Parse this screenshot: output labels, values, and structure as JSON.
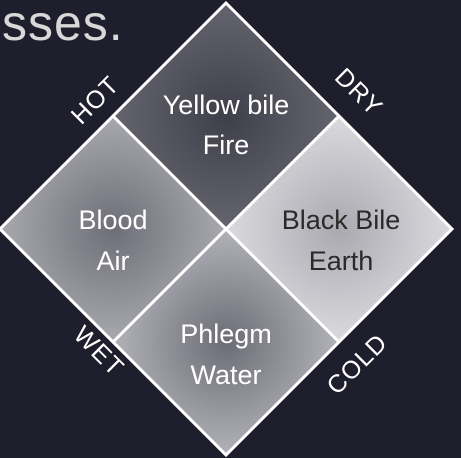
{
  "heading": {
    "text": "sses."
  },
  "diagram": {
    "quadrants": {
      "top": {
        "line1": "Yellow bile",
        "line2": "Fire",
        "text_color": "#ffffff"
      },
      "left": {
        "line1": "Blood",
        "line2": "Air",
        "text_color": "#ffffff"
      },
      "right": {
        "line1": "Black Bile",
        "line2": "Earth",
        "text_color": "#2a2a2a"
      },
      "bottom": {
        "line1": "Phlegm",
        "line2": "Water",
        "text_color": "#ffffff"
      }
    },
    "axis_labels": {
      "top_left": "HOT",
      "top_right": "DRY",
      "bottom_left": "WET",
      "bottom_right": "COLD"
    },
    "colors": {
      "background": "#1e1e2c",
      "border": "#ffffff",
      "top_fill": "#5a5a66",
      "left_fill": "#9a9aa2",
      "right_fill": "#d6d6da",
      "bottom_fill": "#a8a8ae"
    }
  }
}
